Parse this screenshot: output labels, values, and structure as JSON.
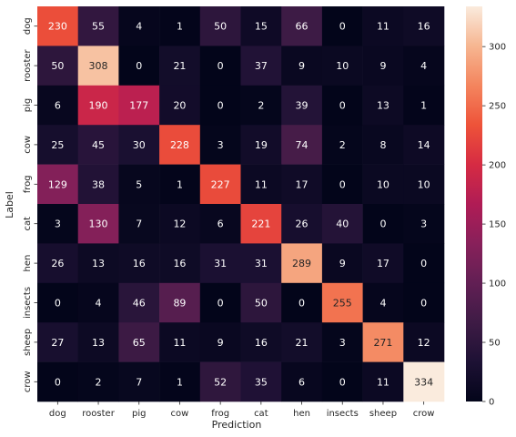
{
  "chart_data": {
    "type": "heatmap",
    "title": "",
    "xlabel": "Prediction",
    "ylabel": "Label",
    "x_categories": [
      "dog",
      "rooster",
      "pig",
      "cow",
      "frog",
      "cat",
      "hen",
      "insects",
      "sheep",
      "crow"
    ],
    "y_categories": [
      "dog",
      "rooster",
      "pig",
      "cow",
      "frog",
      "cat",
      "hen",
      "insects",
      "sheep",
      "crow"
    ],
    "values": [
      [
        230,
        55,
        4,
        1,
        50,
        15,
        66,
        0,
        11,
        16
      ],
      [
        50,
        308,
        0,
        21,
        0,
        37,
        9,
        10,
        9,
        4
      ],
      [
        6,
        190,
        177,
        20,
        0,
        2,
        39,
        0,
        13,
        1
      ],
      [
        25,
        45,
        30,
        228,
        3,
        19,
        74,
        2,
        8,
        14
      ],
      [
        129,
        38,
        5,
        1,
        227,
        11,
        17,
        0,
        10,
        10
      ],
      [
        3,
        130,
        7,
        12,
        6,
        221,
        26,
        40,
        0,
        3
      ],
      [
        26,
        13,
        16,
        16,
        31,
        31,
        289,
        9,
        17,
        0
      ],
      [
        0,
        4,
        46,
        89,
        0,
        50,
        0,
        255,
        4,
        0
      ],
      [
        27,
        13,
        65,
        11,
        9,
        16,
        21,
        3,
        271,
        12
      ],
      [
        0,
        2,
        7,
        1,
        52,
        35,
        6,
        0,
        11,
        334
      ]
    ],
    "vmin": 0,
    "vmax": 334,
    "colorbar_ticks": [
      0,
      50,
      100,
      150,
      200,
      250,
      300
    ],
    "colormap": "rocket",
    "grid": false,
    "legend": "colorbar-right"
  }
}
